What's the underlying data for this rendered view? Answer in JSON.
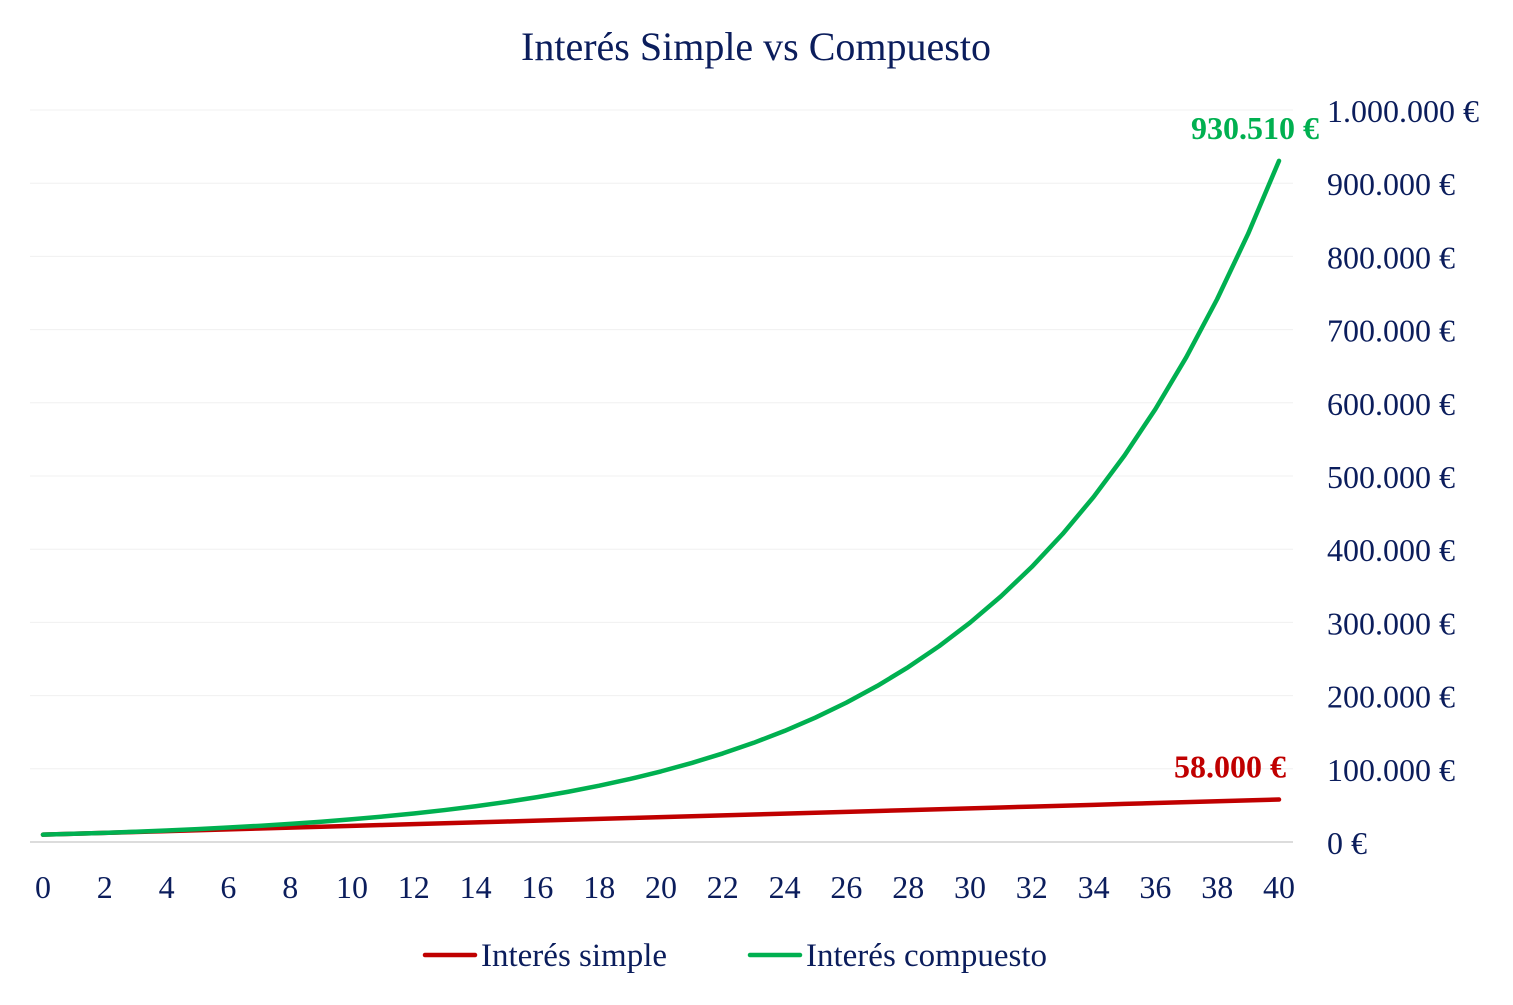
{
  "chart_data": {
    "type": "line",
    "title": "Interés Simple vs Compuesto",
    "xlabel": "",
    "ylabel": "",
    "x": [
      0,
      1,
      2,
      3,
      4,
      5,
      6,
      7,
      8,
      9,
      10,
      11,
      12,
      13,
      14,
      15,
      16,
      17,
      18,
      19,
      20,
      21,
      22,
      23,
      24,
      25,
      26,
      27,
      28,
      29,
      30,
      31,
      32,
      33,
      34,
      35,
      36,
      37,
      38,
      39,
      40
    ],
    "x_tick_labels": [
      "0",
      "2",
      "4",
      "6",
      "8",
      "10",
      "12",
      "14",
      "16",
      "18",
      "20",
      "22",
      "24",
      "26",
      "28",
      "30",
      "32",
      "34",
      "36",
      "38",
      "40"
    ],
    "x_ticks": [
      0,
      2,
      4,
      6,
      8,
      10,
      12,
      14,
      16,
      18,
      20,
      22,
      24,
      26,
      28,
      30,
      32,
      34,
      36,
      38,
      40
    ],
    "xlim": [
      0,
      40
    ],
    "ylim": [
      0,
      1000000
    ],
    "y_ticks": [
      0,
      100000,
      200000,
      300000,
      400000,
      500000,
      600000,
      700000,
      800000,
      900000,
      1000000
    ],
    "y_tick_labels": [
      "0 €",
      "100.000 €",
      "200.000 €",
      "300.000 €",
      "400.000 €",
      "500.000 €",
      "600.000 €",
      "700.000 €",
      "800.000 €",
      "900.000 €",
      "1.000.000 €"
    ],
    "y_axis_side": "right",
    "grid": true,
    "legend_placement": "bottom",
    "series": [
      {
        "name": "Interés simple",
        "color": "#C00000",
        "values": [
          10000,
          11200,
          12400,
          13600,
          14800,
          16000,
          17200,
          18400,
          19600,
          20800,
          22000,
          23200,
          24400,
          25600,
          26800,
          28000,
          29200,
          30400,
          31600,
          32800,
          34000,
          35200,
          36400,
          37600,
          38800,
          40000,
          41200,
          42400,
          43600,
          44800,
          46000,
          47200,
          48400,
          49600,
          50800,
          52000,
          53200,
          54400,
          55600,
          56800,
          58000
        ],
        "end_label": "58.000 €"
      },
      {
        "name": "Interés compuesto",
        "color": "#00B050",
        "values": [
          10000,
          11200,
          12544,
          14049,
          15735,
          17623,
          19738,
          22107,
          24760,
          27731,
          31058,
          34785,
          38960,
          43635,
          48871,
          54736,
          61304,
          68660,
          76900,
          86128,
          96463,
          108038,
          121003,
          135523,
          151786,
          170001,
          190401,
          213249,
          238839,
          267499,
          299599,
          335551,
          375817,
          420915,
          471425,
          527996,
          591356,
          662318,
          741797,
          830812,
          930510
        ],
        "end_label": "930.510 €"
      }
    ]
  }
}
